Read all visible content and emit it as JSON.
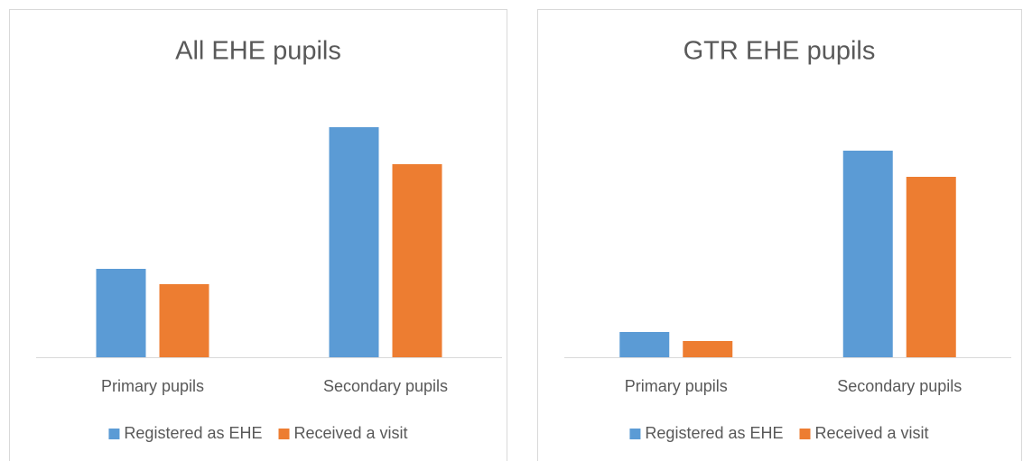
{
  "chart_data": [
    {
      "type": "bar",
      "title": "All EHE pupils",
      "categories": [
        "Primary pupils",
        "Secondary pupils"
      ],
      "series": [
        {
          "name": "Registered as EHE",
          "color": "#5b9bd5",
          "values": [
            98,
            255
          ]
        },
        {
          "name": "Received a visit",
          "color": "#ed7d31",
          "values": [
            81,
            214
          ]
        }
      ],
      "ylim": [
        0,
        300
      ],
      "legend": "bottom"
    },
    {
      "type": "bar",
      "title": "GTR EHE pupils",
      "categories": [
        "Primary pupils",
        "Secondary pupils"
      ],
      "series": [
        {
          "name": "Registered as EHE",
          "color": "#5b9bd5",
          "values": [
            28,
            229
          ]
        },
        {
          "name": "Received a visit",
          "color": "#ed7d31",
          "values": [
            18,
            200
          ]
        }
      ],
      "ylim": [
        0,
        300
      ],
      "legend": "bottom"
    }
  ]
}
